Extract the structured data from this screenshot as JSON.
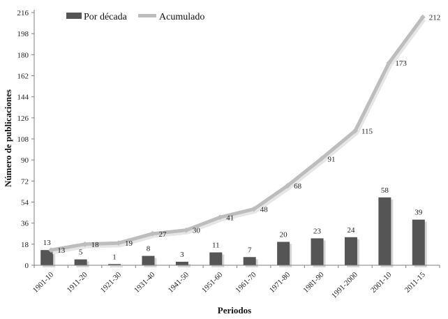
{
  "chart_data": {
    "type": "bar+line",
    "categories": [
      "1901-10",
      "1911-20",
      "1921-30",
      "1931-40",
      "1941-50",
      "1951-60",
      "1961-70",
      "1971-80",
      "1981-90",
      "1991-2000",
      "2001-10",
      "2011-15"
    ],
    "series": [
      {
        "name": "Por década",
        "type": "bar",
        "values": [
          13,
          5,
          1,
          8,
          3,
          11,
          7,
          20,
          23,
          24,
          58,
          39
        ]
      },
      {
        "name": "Acumulado",
        "type": "line",
        "values": [
          13,
          18,
          19,
          27,
          30,
          41,
          48,
          68,
          91,
          115,
          173,
          212
        ]
      }
    ],
    "xlabel": "Periodos",
    "ylabel": "Número de publicaciones",
    "ylim": [
      0,
      216
    ],
    "yticks": [
      0,
      18,
      36,
      54,
      72,
      90,
      108,
      126,
      144,
      162,
      180,
      198,
      216
    ],
    "legend_position": "top-left",
    "grid": false,
    "colors": {
      "bars": "#555555",
      "line": "#bdbdbd",
      "axis": "#7f7f7f"
    }
  }
}
